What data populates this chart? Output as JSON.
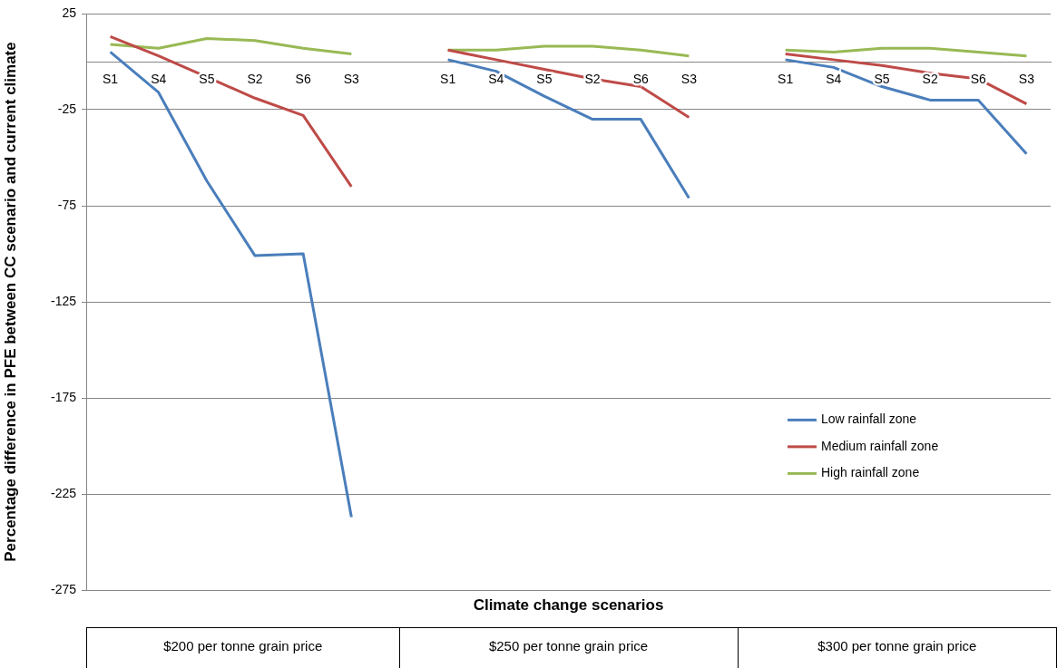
{
  "chart_data": {
    "type": "line",
    "ylabel": "Percentage difference in PFE between CC scenario and current climate",
    "xlabel": "Climate change scenarios",
    "categories": [
      "S1",
      "S4",
      "S5",
      "S2",
      "S6",
      "S3",
      null,
      "S1",
      "S4",
      "S5",
      "S2",
      "S6",
      "S3",
      null,
      "S1",
      "S4",
      "S5",
      "S2",
      "S6",
      "S3"
    ],
    "series": [
      {
        "name": "Low rainfall zone",
        "color": "#4a7ebb",
        "values": [
          5,
          -16,
          -62,
          -101,
          -100,
          -237,
          null,
          1,
          -5,
          -18,
          -30,
          -30,
          -71,
          null,
          1,
          -3,
          -13,
          -20,
          -20,
          -48
        ]
      },
      {
        "name": "Medium rainfall zone",
        "color": "#be4b48",
        "values": [
          13,
          3,
          -8,
          -19,
          -28,
          -65,
          null,
          6,
          1,
          -4,
          -9,
          -13,
          -29,
          null,
          4,
          1,
          -2,
          -6,
          -9,
          -22
        ]
      },
      {
        "name": "High rainfall zone",
        "color": "#98b954",
        "values": [
          9,
          7,
          12,
          11,
          7,
          4,
          null,
          6,
          6,
          8,
          8,
          6,
          3,
          null,
          6,
          5,
          7,
          7,
          5,
          3
        ]
      }
    ],
    "annotations": [
      "$200 per tonne grain price",
      "$250 per tonne grain price",
      "$300 per tonne grain price"
    ],
    "ylim": [
      -275,
      25
    ],
    "yticks": [
      25,
      -25,
      -75,
      -125,
      -175,
      -225,
      -275
    ],
    "grid": "y",
    "legend": "right",
    "marker": "none",
    "line_style": "solid"
  }
}
